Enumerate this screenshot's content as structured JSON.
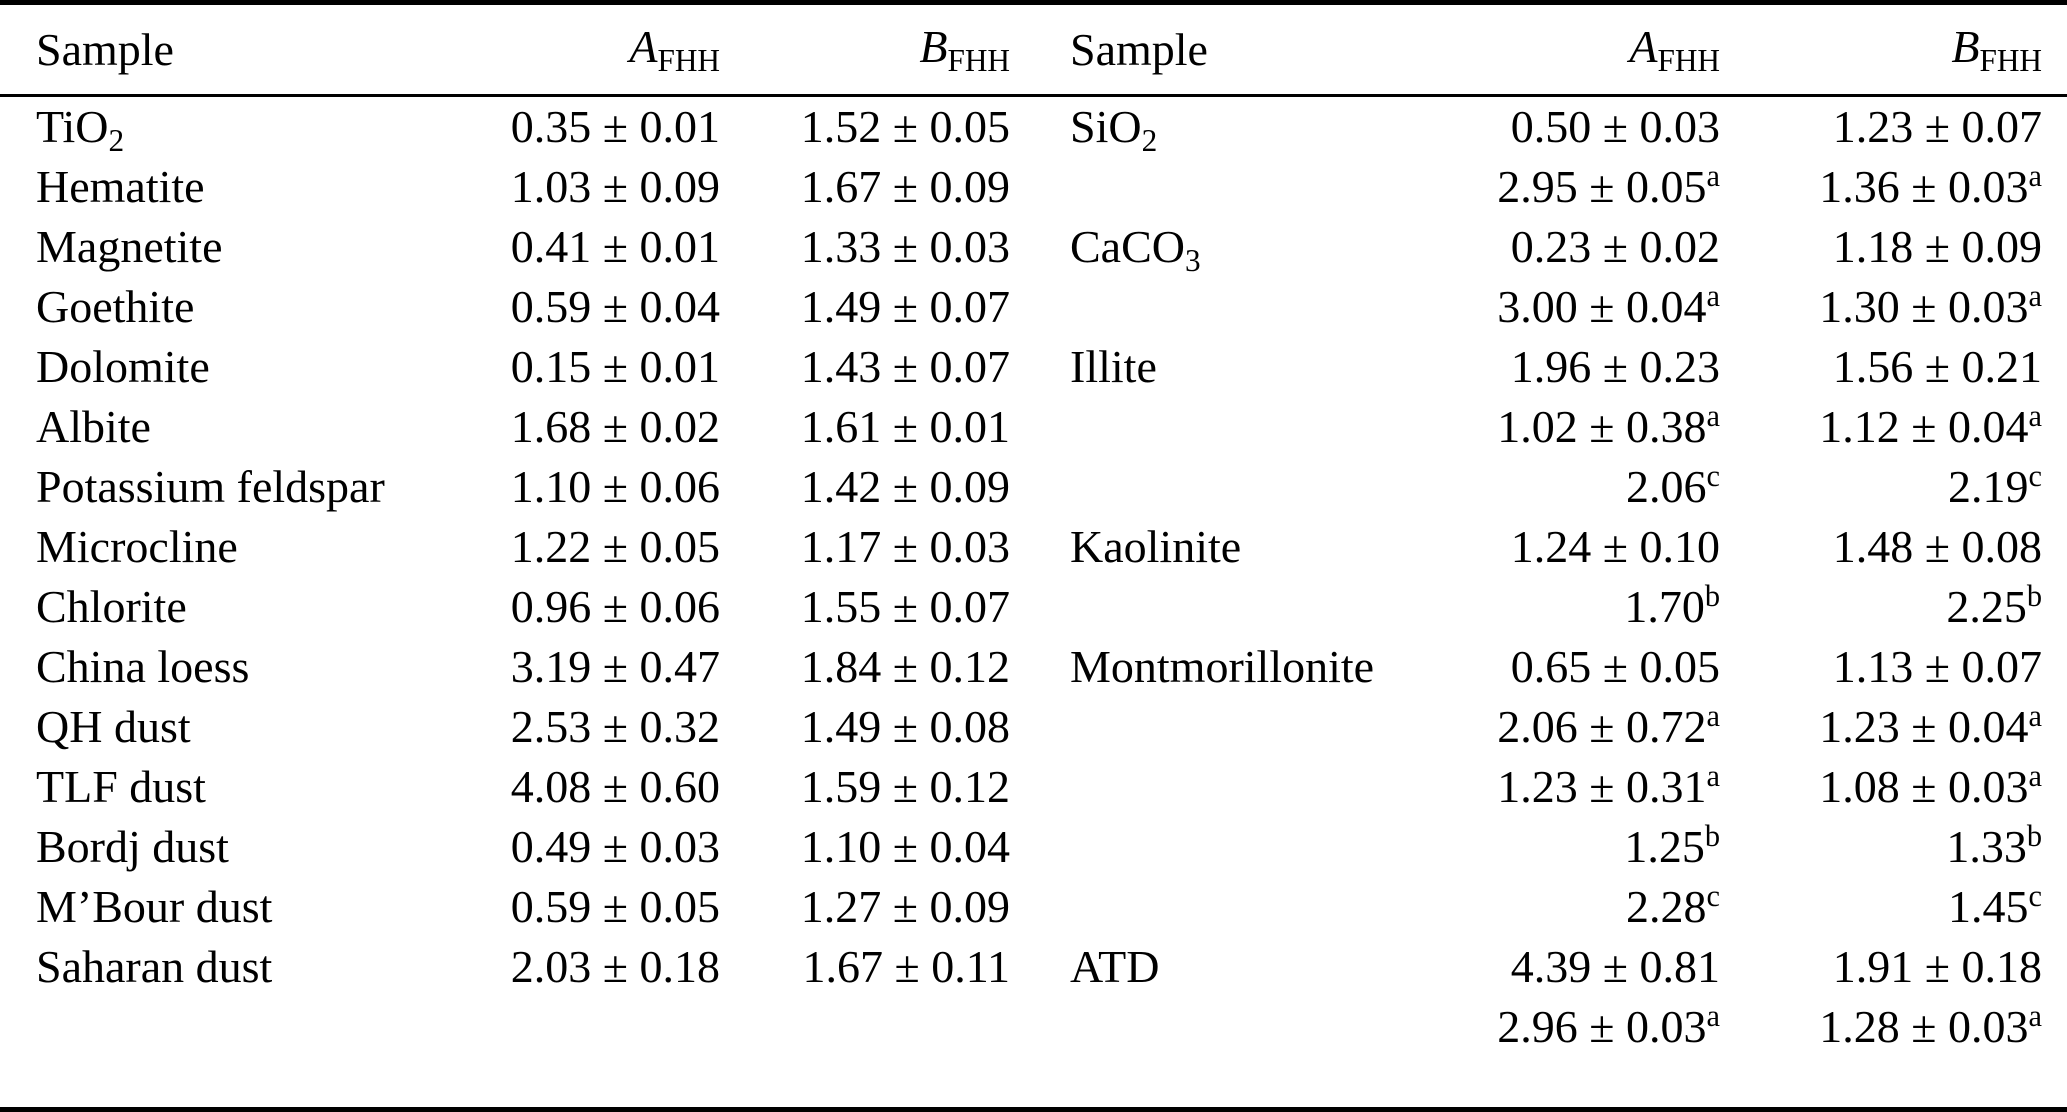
{
  "page": {
    "background": "#ffffff",
    "text_color": "#000000",
    "rule_color": "#000000"
  },
  "table": {
    "columns": [
      {
        "label": "Sample"
      },
      {
        "symbol": "A",
        "sub": "FHH"
      },
      {
        "symbol": "B",
        "sub": "FHH"
      },
      {
        "label": "Sample"
      },
      {
        "symbol": "A",
        "sub": "FHH"
      },
      {
        "symbol": "B",
        "sub": "FHH"
      }
    ],
    "rows": [
      {
        "left": {
          "sample": {
            "base": "TiO",
            "sub": "2"
          },
          "a": {
            "val": "0.35 ± 0.01"
          },
          "b": {
            "val": "1.52 ± 0.05"
          }
        },
        "right": {
          "sample": {
            "base": "SiO",
            "sub": "2"
          },
          "a": {
            "val": "0.50 ± 0.03"
          },
          "b": {
            "val": "1.23 ± 0.07"
          }
        }
      },
      {
        "left": {
          "sample": {
            "base": "Hematite"
          },
          "a": {
            "val": "1.03 ± 0.09"
          },
          "b": {
            "val": "1.67 ± 0.09"
          }
        },
        "right": {
          "sample": null,
          "a": {
            "val": "2.95 ± 0.05",
            "sup": "a"
          },
          "b": {
            "val": "1.36 ± 0.03",
            "sup": "a"
          }
        }
      },
      {
        "left": {
          "sample": {
            "base": "Magnetite"
          },
          "a": {
            "val": "0.41 ± 0.01"
          },
          "b": {
            "val": "1.33 ± 0.03"
          }
        },
        "right": {
          "sample": {
            "base": "CaCO",
            "sub": "3"
          },
          "a": {
            "val": "0.23 ± 0.02"
          },
          "b": {
            "val": "1.18 ± 0.09"
          }
        }
      },
      {
        "left": {
          "sample": {
            "base": "Goethite"
          },
          "a": {
            "val": "0.59 ± 0.04"
          },
          "b": {
            "val": "1.49 ± 0.07"
          }
        },
        "right": {
          "sample": null,
          "a": {
            "val": "3.00 ± 0.04",
            "sup": "a"
          },
          "b": {
            "val": "1.30 ± 0.03",
            "sup": "a"
          }
        }
      },
      {
        "left": {
          "sample": {
            "base": "Dolomite"
          },
          "a": {
            "val": "0.15 ± 0.01"
          },
          "b": {
            "val": "1.43 ± 0.07"
          }
        },
        "right": {
          "sample": {
            "base": "Illite"
          },
          "a": {
            "val": "1.96 ± 0.23"
          },
          "b": {
            "val": "1.56 ± 0.21"
          }
        }
      },
      {
        "left": {
          "sample": {
            "base": "Albite"
          },
          "a": {
            "val": "1.68 ± 0.02"
          },
          "b": {
            "val": "1.61 ± 0.01"
          }
        },
        "right": {
          "sample": null,
          "a": {
            "val": "1.02 ± 0.38",
            "sup": "a"
          },
          "b": {
            "val": "1.12 ± 0.04",
            "sup": "a"
          }
        }
      },
      {
        "left": {
          "sample": {
            "base": "Potassium feldspar"
          },
          "a": {
            "val": "1.10 ± 0.06"
          },
          "b": {
            "val": "1.42 ± 0.09"
          }
        },
        "right": {
          "sample": null,
          "a": {
            "val": "2.06",
            "sup": "c"
          },
          "b": {
            "val": "2.19",
            "sup": "c"
          }
        }
      },
      {
        "left": {
          "sample": {
            "base": "Microcline"
          },
          "a": {
            "val": "1.22 ± 0.05"
          },
          "b": {
            "val": "1.17 ± 0.03"
          }
        },
        "right": {
          "sample": {
            "base": "Kaolinite"
          },
          "a": {
            "val": "1.24 ± 0.10"
          },
          "b": {
            "val": "1.48 ± 0.08"
          }
        }
      },
      {
        "left": {
          "sample": {
            "base": "Chlorite"
          },
          "a": {
            "val": "0.96 ± 0.06"
          },
          "b": {
            "val": "1.55 ± 0.07"
          }
        },
        "right": {
          "sample": null,
          "a": {
            "val": "1.70",
            "sup": "b"
          },
          "b": {
            "val": "2.25",
            "sup": "b"
          }
        }
      },
      {
        "left": {
          "sample": {
            "base": "China loess"
          },
          "a": {
            "val": "3.19 ± 0.47"
          },
          "b": {
            "val": "1.84 ± 0.12"
          }
        },
        "right": {
          "sample": {
            "base": "Montmorillonite"
          },
          "a": {
            "val": "0.65 ± 0.05"
          },
          "b": {
            "val": "1.13 ± 0.07"
          }
        }
      },
      {
        "left": {
          "sample": {
            "base": "QH dust"
          },
          "a": {
            "val": "2.53 ± 0.32"
          },
          "b": {
            "val": "1.49 ± 0.08"
          }
        },
        "right": {
          "sample": null,
          "a": {
            "val": "2.06 ± 0.72",
            "sup": "a"
          },
          "b": {
            "val": "1.23 ± 0.04",
            "sup": "a"
          }
        }
      },
      {
        "left": {
          "sample": {
            "base": "TLF dust"
          },
          "a": {
            "val": "4.08 ± 0.60"
          },
          "b": {
            "val": "1.59 ± 0.12"
          }
        },
        "right": {
          "sample": null,
          "a": {
            "val": "1.23 ± 0.31",
            "sup": "a"
          },
          "b": {
            "val": "1.08 ± 0.03",
            "sup": "a"
          }
        }
      },
      {
        "left": {
          "sample": {
            "base": "Bordj dust"
          },
          "a": {
            "val": "0.49 ± 0.03"
          },
          "b": {
            "val": "1.10 ± 0.04"
          }
        },
        "right": {
          "sample": null,
          "a": {
            "val": "1.25",
            "sup": "b"
          },
          "b": {
            "val": "1.33",
            "sup": "b"
          }
        }
      },
      {
        "left": {
          "sample": {
            "base": "M’Bour dust"
          },
          "a": {
            "val": "0.59 ± 0.05"
          },
          "b": {
            "val": "1.27 ± 0.09"
          }
        },
        "right": {
          "sample": null,
          "a": {
            "val": "2.28",
            "sup": "c"
          },
          "b": {
            "val": "1.45",
            "sup": "c"
          }
        }
      },
      {
        "left": {
          "sample": {
            "base": "Saharan dust"
          },
          "a": {
            "val": "2.03 ± 0.18"
          },
          "b": {
            "val": "1.67 ± 0.11"
          }
        },
        "right": {
          "sample": {
            "base": "ATD"
          },
          "a": {
            "val": "4.39 ± 0.81"
          },
          "b": {
            "val": "1.91 ± 0.18"
          }
        }
      },
      {
        "left": {
          "sample": null,
          "a": null,
          "b": null
        },
        "right": {
          "sample": null,
          "a": {
            "val": "2.96 ± 0.03",
            "sup": "a"
          },
          "b": {
            "val": "1.28 ± 0.03",
            "sup": "a"
          }
        }
      }
    ]
  }
}
